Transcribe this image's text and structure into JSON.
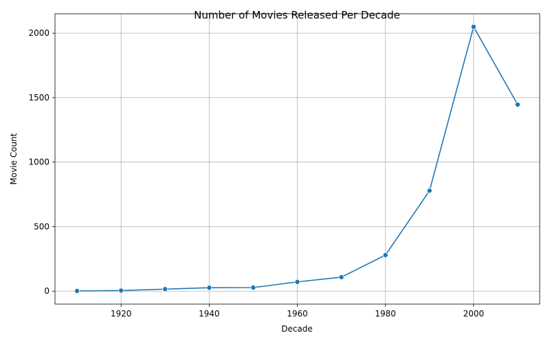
{
  "chart_data": {
    "type": "line",
    "title": "Number of Movies Released Per Decade",
    "xlabel": "Decade",
    "ylabel": "Movie Count",
    "x": [
      1910,
      1920,
      1930,
      1940,
      1950,
      1960,
      1970,
      1980,
      1990,
      2000,
      2010
    ],
    "series": [
      {
        "values": [
          2,
          5,
          16,
          27,
          28,
          72,
          109,
          280,
          779,
          2049,
          1446
        ],
        "color": "#1f77b4",
        "marker": "circle"
      }
    ],
    "xlim": [
      1905,
      2015
    ],
    "ylim": [
      -100,
      2150
    ],
    "xticks": [
      1920,
      1940,
      1960,
      1980,
      2000
    ],
    "yticks": [
      0,
      500,
      1000,
      1500,
      2000
    ],
    "grid": true,
    "legend": "none"
  }
}
